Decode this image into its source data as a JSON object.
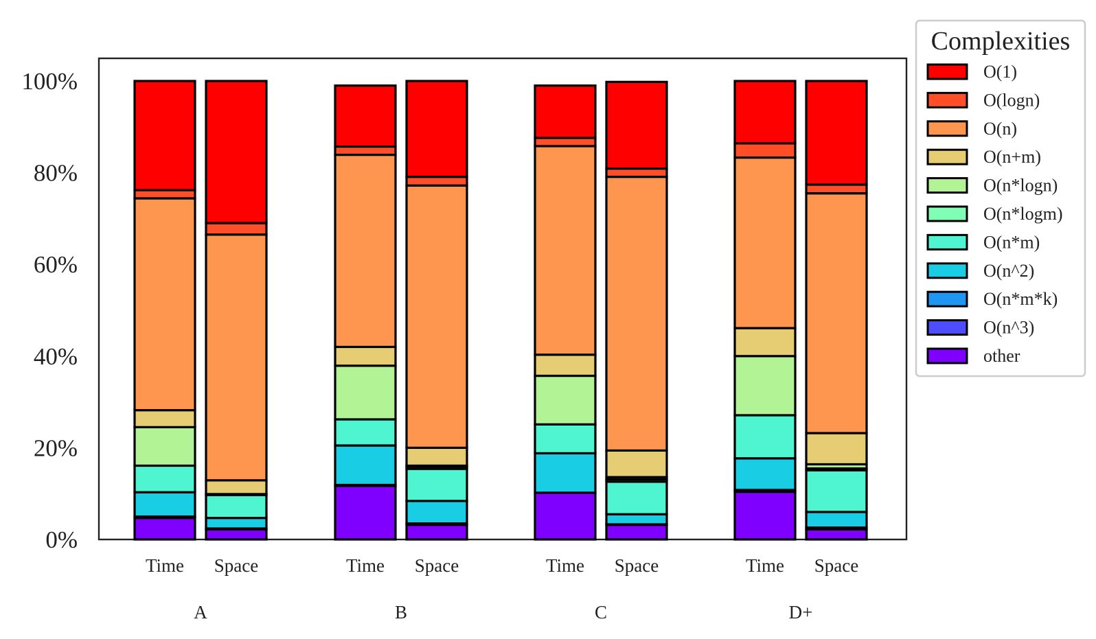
{
  "chart_data": {
    "type": "bar",
    "stacked": true,
    "normalized": true,
    "groups": [
      "A",
      "B",
      "C",
      "D+"
    ],
    "bar_labels": [
      "Time",
      "Space"
    ],
    "yticks": [
      "0%",
      "20%",
      "40%",
      "60%",
      "80%",
      "100%"
    ],
    "ylim": [
      0,
      100
    ],
    "legend": {
      "title": "Complexities",
      "placement": "outside-top-right"
    },
    "series": [
      {
        "name": "other",
        "color": "#8000ff",
        "values": [
          [
            4.7,
            2.2
          ],
          [
            11.7,
            3.2
          ],
          [
            10.2,
            3.2
          ],
          [
            10.4,
            2.2
          ]
        ]
      },
      {
        "name": "O(n^3)",
        "color": "#4e4dfc",
        "values": [
          [
            0.3,
            0.2
          ],
          [
            0.2,
            0.3
          ],
          [
            0.0,
            0.1
          ],
          [
            0.4,
            0.4
          ]
        ]
      },
      {
        "name": "O(n*m*k)",
        "color": "#1e96f2",
        "values": [
          [
            0.0,
            0.0
          ],
          [
            0.0,
            0.0
          ],
          [
            0.0,
            0.0
          ],
          [
            0.0,
            0.0
          ]
        ]
      },
      {
        "name": "O(n^2)",
        "color": "#18cde4",
        "values": [
          [
            5.3,
            2.3
          ],
          [
            8.6,
            4.9
          ],
          [
            8.6,
            2.2
          ],
          [
            6.9,
            3.4
          ]
        ]
      },
      {
        "name": "O(n*m)",
        "color": "#4ef5d0",
        "values": [
          [
            5.8,
            5.0
          ],
          [
            5.7,
            7.0
          ],
          [
            6.3,
            7.1
          ],
          [
            9.4,
            9.1
          ]
        ]
      },
      {
        "name": "O(n*logm)",
        "color": "#80ffb4",
        "values": [
          [
            0.0,
            0.0
          ],
          [
            0.0,
            0.5
          ],
          [
            0.0,
            0.5
          ],
          [
            0.0,
            0.4
          ]
        ]
      },
      {
        "name": "O(n*logn)",
        "color": "#b2f396",
        "values": [
          [
            8.4,
            0.2
          ],
          [
            11.7,
            0.2
          ],
          [
            10.6,
            0.5
          ],
          [
            12.9,
            0.9
          ]
        ]
      },
      {
        "name": "O(n+m)",
        "color": "#e6cd74",
        "values": [
          [
            3.7,
            3.0
          ],
          [
            4.1,
            3.9
          ],
          [
            4.6,
            5.8
          ],
          [
            6.1,
            6.8
          ]
        ]
      },
      {
        "name": "O(n)",
        "color": "#ff9650",
        "values": [
          [
            46.2,
            53.6
          ],
          [
            41.9,
            57.2
          ],
          [
            45.5,
            59.7
          ],
          [
            37.2,
            52.3
          ]
        ]
      },
      {
        "name": "O(logn)",
        "color": "#ff4e28",
        "values": [
          [
            1.8,
            2.5
          ],
          [
            1.8,
            1.9
          ],
          [
            1.8,
            1.8
          ],
          [
            3.1,
            1.9
          ]
        ]
      },
      {
        "name": "O(1)",
        "color": "#ff0000",
        "values": [
          [
            23.8,
            31.0
          ],
          [
            13.3,
            20.9
          ],
          [
            11.4,
            18.9
          ],
          [
            13.6,
            22.6
          ]
        ]
      }
    ]
  }
}
